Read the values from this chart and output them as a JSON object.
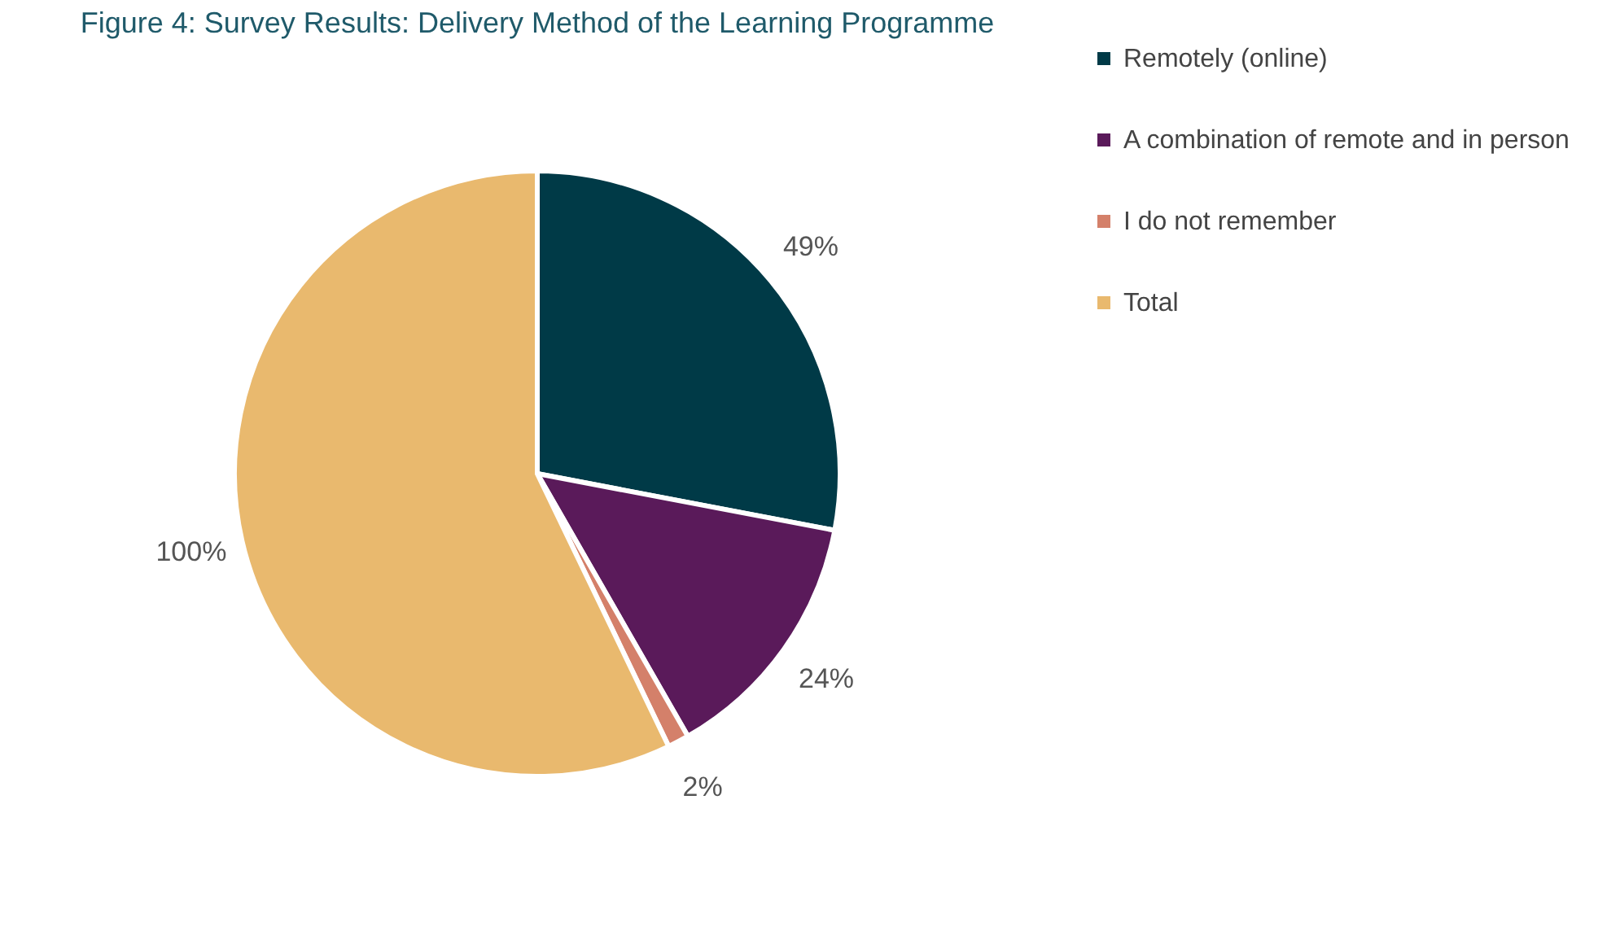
{
  "chart_data": {
    "type": "pie",
    "title": "Figure 4: Survey Results: Delivery Method of the Learning Programme",
    "categories": [
      "Remotely (online)",
      "A combination of remote and in person",
      "I do not remember",
      "Total"
    ],
    "values": [
      49,
      24,
      2,
      100
    ],
    "colors": [
      "#003a47",
      "#5a1a5a",
      "#d4806a",
      "#e9b96e"
    ],
    "value_labels": [
      "49%",
      "24%",
      "2%",
      "100%"
    ],
    "legend": "right"
  }
}
